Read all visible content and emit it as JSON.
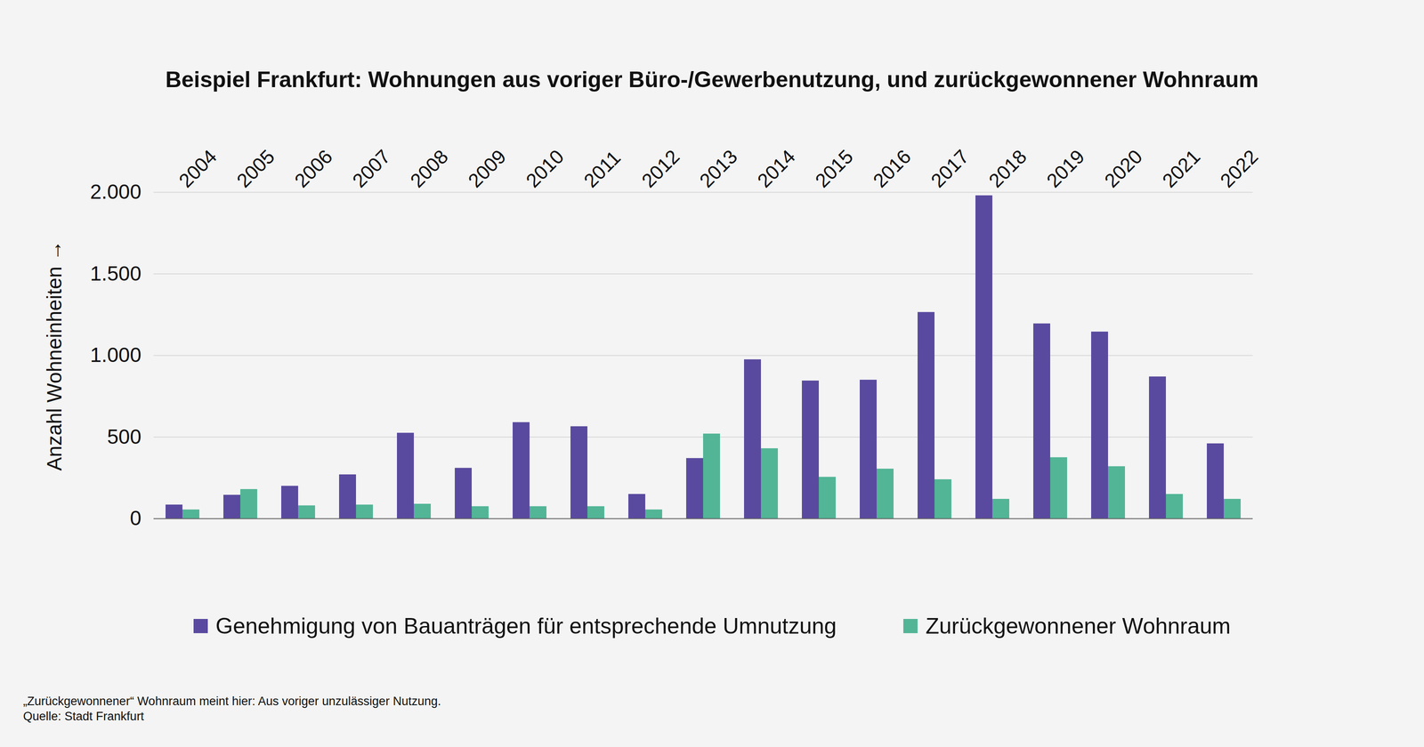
{
  "chart_data": {
    "type": "bar",
    "title": "Beispiel Frankfurt: Wohnungen aus voriger Büro-/Gewerbenutzung, und zurückgewonnener Wohnraum",
    "y_label": "Anzahl Wohneinheiten",
    "categories": [
      "2004",
      "2005",
      "2006",
      "2007",
      "2008",
      "2009",
      "2010",
      "2011",
      "2012",
      "2013",
      "2014",
      "2015",
      "2016",
      "2017",
      "2018",
      "2019",
      "2020",
      "2021",
      "2022"
    ],
    "series": [
      {
        "name": "Genehmigung von Bauanträgen für entsprechende Umnutzung",
        "color": "#5a4a9f",
        "values": [
          85,
          145,
          200,
          270,
          525,
          310,
          590,
          565,
          150,
          370,
          975,
          845,
          850,
          1265,
          1980,
          1195,
          1145,
          870,
          460
        ]
      },
      {
        "name": "Zurückgewonnener Wohnraum",
        "color": "#52b596",
        "values": [
          55,
          180,
          80,
          85,
          90,
          75,
          75,
          75,
          55,
          520,
          430,
          255,
          305,
          240,
          120,
          375,
          320,
          150,
          120
        ]
      }
    ],
    "ylim": [
      0,
      2000
    ],
    "yticks": [
      0,
      500,
      {
        "value": 1000,
        "label": "1.000"
      },
      {
        "value": 1500,
        "label": "1.500"
      },
      {
        "value": 2000,
        "label": "2.000"
      }
    ],
    "grid": true,
    "legend": "bottom",
    "annotations": [
      "„Zurückgewonnener“ Wohnraum meint hier: Aus voriger unzulässiger Nutzung.",
      "Quelle: Stadt Frankfurt"
    ]
  }
}
